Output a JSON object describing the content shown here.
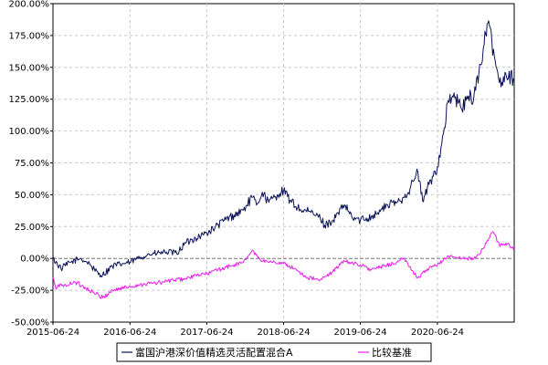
{
  "chart_data": {
    "type": "line",
    "title": "",
    "xlabel": "",
    "ylabel": "",
    "x_ticks": [
      "2015-06-24",
      "2016-06-24",
      "2017-06-24",
      "2018-06-24",
      "2019-06-24",
      "2020-06-24"
    ],
    "x_range": [
      "2015-06-24",
      "2021-06-24"
    ],
    "y_ticks": [
      "200.00%",
      "175.00%",
      "150.00%",
      "125.00%",
      "100.00%",
      "75.00%",
      "50.00%",
      "25.00%",
      "0.00%",
      "-25.00%",
      "-50.00%"
    ],
    "ylim": [
      -50,
      200
    ],
    "y_unit": "%",
    "grid": true,
    "legend_position": "bottom",
    "series": [
      {
        "name": "富国沪港深价值精选灵活配置混合A",
        "color": "#0b1356",
        "x": [
          "2015-06-24",
          "2015-08-01",
          "2015-09-15",
          "2015-11-01",
          "2015-12-15",
          "2016-01-10",
          "2016-02-15",
          "2016-04-01",
          "2016-06-24",
          "2016-08-01",
          "2016-09-15",
          "2016-11-01",
          "2016-12-15",
          "2017-02-01",
          "2017-03-15",
          "2017-05-01",
          "2017-06-24",
          "2017-08-01",
          "2017-09-15",
          "2017-11-01",
          "2017-12-15",
          "2018-01-25",
          "2018-02-15",
          "2018-03-15",
          "2018-04-15",
          "2018-05-25",
          "2018-06-24",
          "2018-08-01",
          "2018-09-15",
          "2018-11-01",
          "2018-12-15",
          "2019-01-05",
          "2019-02-15",
          "2019-04-10",
          "2019-05-15",
          "2019-06-24",
          "2019-08-15",
          "2019-09-15",
          "2019-11-01",
          "2019-12-15",
          "2020-01-15",
          "2020-02-15",
          "2020-03-23",
          "2020-04-15",
          "2020-05-15",
          "2020-06-24",
          "2020-07-15",
          "2020-08-15",
          "2020-09-15",
          "2020-10-15",
          "2020-11-15",
          "2020-12-15",
          "2021-01-15",
          "2021-02-01",
          "2021-02-15",
          "2021-03-10",
          "2021-03-25",
          "2021-04-15",
          "2021-05-15",
          "2021-06-24"
        ],
        "values": [
          0,
          -8,
          -3,
          0,
          -4,
          -10,
          -13,
          -6,
          -3,
          0,
          3,
          4,
          5,
          4,
          12,
          16,
          20,
          24,
          30,
          34,
          38,
          48,
          42,
          52,
          44,
          50,
          53,
          44,
          38,
          36,
          32,
          26,
          30,
          42,
          32,
          30,
          33,
          36,
          42,
          44,
          48,
          55,
          68,
          45,
          58,
          72,
          90,
          124,
          126,
          118,
          125,
          128,
          152,
          168,
          184,
          170,
          156,
          138,
          145,
          141
        ]
      },
      {
        "name": "比较基准",
        "color": "#e820e8",
        "x": [
          "2015-06-24",
          "2015-07-08",
          "2015-08-01",
          "2015-08-26",
          "2015-10-01",
          "2015-11-15",
          "2016-01-15",
          "2016-02-15",
          "2016-04-01",
          "2016-06-24",
          "2016-09-01",
          "2016-11-15",
          "2017-01-15",
          "2017-03-15",
          "2017-05-15",
          "2017-06-24",
          "2017-08-15",
          "2017-10-15",
          "2017-12-15",
          "2018-01-25",
          "2018-03-15",
          "2018-05-15",
          "2018-06-24",
          "2018-08-15",
          "2018-10-15",
          "2018-12-15",
          "2019-01-15",
          "2019-04-10",
          "2019-06-24",
          "2019-08-15",
          "2019-10-15",
          "2019-12-15",
          "2020-01-15",
          "2020-03-23",
          "2020-05-15",
          "2020-06-24",
          "2020-08-15",
          "2020-10-15",
          "2020-12-15",
          "2021-01-15",
          "2021-02-15",
          "2021-03-15",
          "2021-04-15",
          "2021-05-15",
          "2021-06-24"
        ],
        "values": [
          -15,
          -24,
          -20,
          -22,
          -18,
          -22,
          -28,
          -31,
          -25,
          -22,
          -20,
          -19,
          -17,
          -16,
          -13,
          -12,
          -9,
          -6,
          -3,
          6,
          -2,
          -3,
          -4,
          -8,
          -15,
          -17,
          -14,
          -2,
          -5,
          -9,
          -6,
          -3,
          0,
          -15,
          -8,
          -5,
          2,
          0,
          0,
          4,
          14,
          21,
          10,
          12,
          8
        ]
      }
    ],
    "zero_line": {
      "y": 0,
      "color": "#777777",
      "style": "dashed"
    }
  }
}
